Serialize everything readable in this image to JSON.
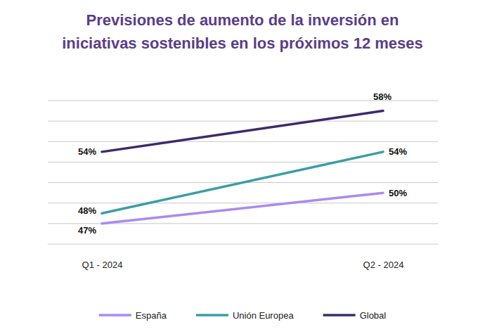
{
  "chart_data": {
    "type": "line",
    "title": [
      "Previsiones de aumento de la inversión en",
      "iniciativas sostenibles en los próximos 12 meses"
    ],
    "categories": [
      "Q1 - 2024",
      "Q2 - 2024"
    ],
    "series": [
      {
        "name": "España",
        "color": "#a98bf0",
        "values": [
          47,
          50
        ],
        "value_labels": [
          "47%",
          "50%"
        ]
      },
      {
        "name": "Unión Europea",
        "color": "#3a9ea5",
        "values": [
          48,
          54
        ],
        "value_labels": [
          "48%",
          "54%"
        ]
      },
      {
        "name": "Global",
        "color": "#3f2a6b",
        "values": [
          54,
          58
        ],
        "value_labels": [
          "54%",
          "58%"
        ]
      }
    ],
    "ylim": [
      45,
      59
    ],
    "yticks": [
      45,
      47,
      49,
      51,
      53,
      55,
      57,
      59
    ],
    "grid": true,
    "tick_labels": "x",
    "data_labels": true,
    "legend": "bottom"
  }
}
